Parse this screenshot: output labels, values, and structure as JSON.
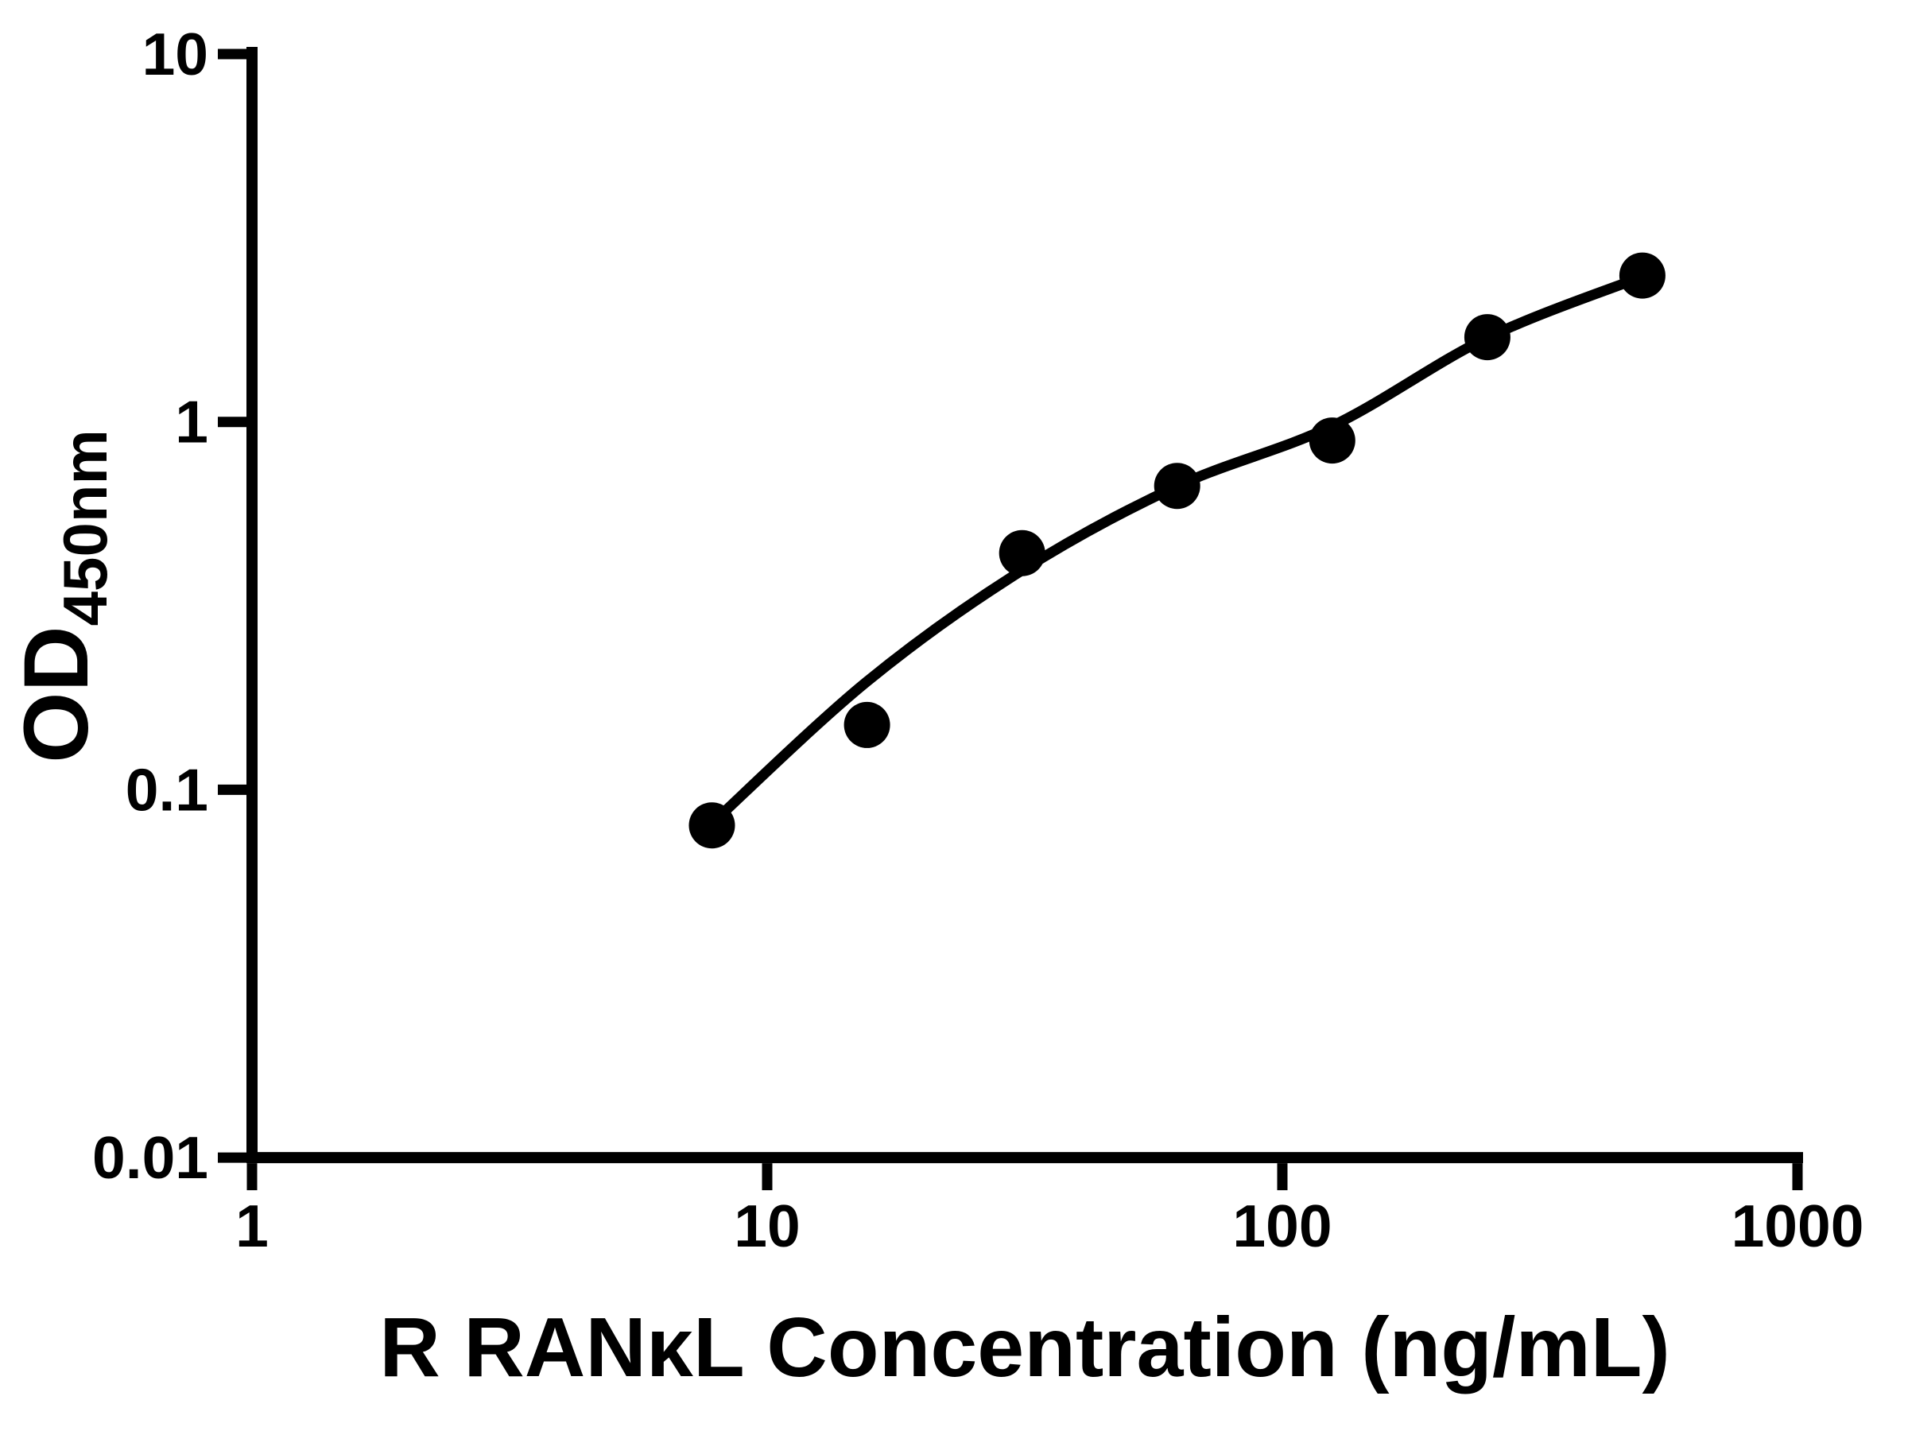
{
  "figure": {
    "background": "#ffffff",
    "ink_color": "#000000"
  },
  "chart_data": {
    "type": "scatter",
    "title": "",
    "xlabel": "R RANκL Concentration (ng/mL)",
    "ylabel": "OD",
    "ylabel_subscript": "450nm",
    "x_scale": "log",
    "y_scale": "log",
    "xlim": [
      1,
      1000
    ],
    "ylim": [
      0.01,
      10
    ],
    "x_ticks": [
      1,
      10,
      100,
      1000
    ],
    "x_tick_labels": [
      "1",
      "10",
      "100",
      "1000"
    ],
    "y_ticks": [
      10,
      1,
      0.1,
      0.01
    ],
    "y_tick_labels": [
      "10",
      "1",
      "0.1",
      "0.01"
    ],
    "grid": false,
    "legend": "none",
    "series": [
      {
        "marker": "filled-circle",
        "color": "#000000",
        "points": [
          {
            "x": 7.8125,
            "y": 0.08
          },
          {
            "x": 15.625,
            "y": 0.15
          },
          {
            "x": 31.25,
            "y": 0.44
          },
          {
            "x": 62.5,
            "y": 0.67
          },
          {
            "x": 125,
            "y": 0.89
          },
          {
            "x": 250,
            "y": 1.7
          },
          {
            "x": 500,
            "y": 2.5
          }
        ]
      }
    ],
    "fit_curve": {
      "color": "#000000",
      "points": [
        {
          "x": 7.8125,
          "y": 0.081
        },
        {
          "x": 15.625,
          "y": 0.197
        },
        {
          "x": 31.25,
          "y": 0.395
        },
        {
          "x": 62.5,
          "y": 0.669
        },
        {
          "x": 125,
          "y": 0.975
        },
        {
          "x": 250,
          "y": 1.694
        },
        {
          "x": 500,
          "y": 2.482
        }
      ]
    }
  }
}
